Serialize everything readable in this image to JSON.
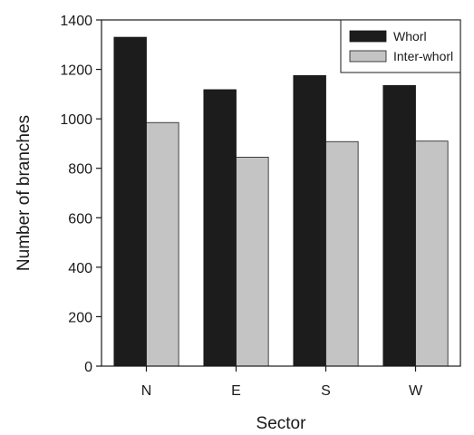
{
  "chart_data": {
    "type": "bar",
    "title": "",
    "xlabel": "Sector",
    "ylabel": "Number of branches",
    "categories": [
      "N",
      "E",
      "S",
      "W"
    ],
    "series": [
      {
        "name": "Whorl",
        "values": [
          1330,
          1118,
          1175,
          1135
        ],
        "color": "#1c1c1c"
      },
      {
        "name": "Inter-whorl",
        "values": [
          985,
          845,
          908,
          910
        ],
        "color": "#c4c4c4"
      }
    ],
    "ylim": [
      0,
      1400
    ],
    "yticks": [
      "0",
      "200",
      "400",
      "600",
      "800",
      "1000",
      "1200",
      "1400"
    ],
    "grid": false,
    "legend_position": "top-right"
  }
}
